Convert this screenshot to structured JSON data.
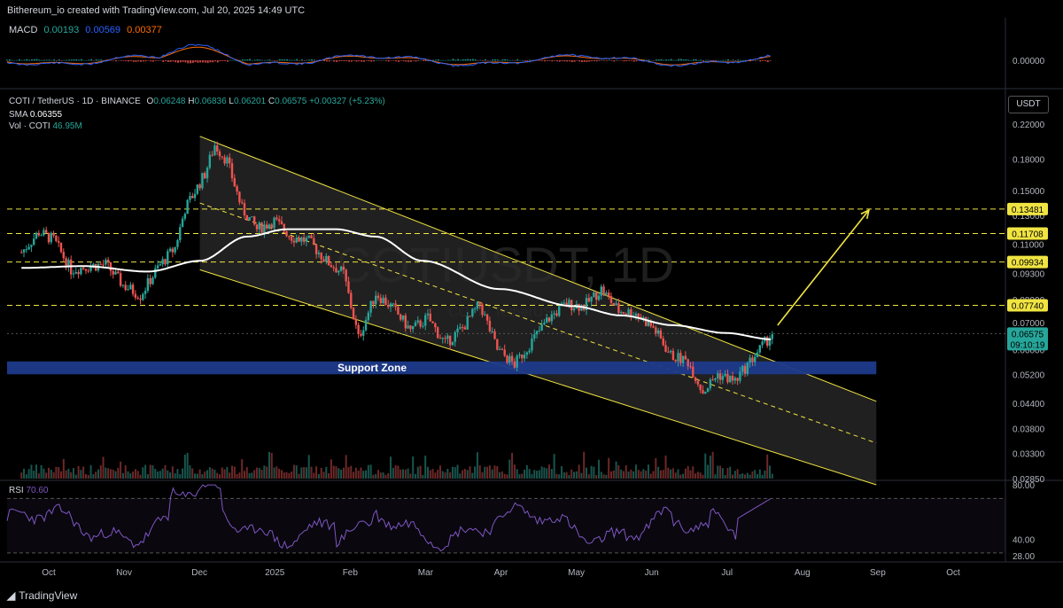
{
  "attribution": "Bithereum_io created with TradingView.com, Jul 20, 2025 14:49 UTC",
  "macd_header": {
    "label": "MACD",
    "v1": "0.00193",
    "v2": "0.00569",
    "v3": "0.00377",
    "axis_zero": "0.00000"
  },
  "main_header": {
    "symbol": "COTI / TetherUS · 1D · BINANCE",
    "ohlc": {
      "o_label": "O",
      "o": "0.06248",
      "h_label": "H",
      "h": "0.06836",
      "l_label": "L",
      "l": "0.06201",
      "c_label": "C",
      "c": "0.06575",
      "change": "+0.00327 (+5.23%)"
    },
    "sma_label": "SMA",
    "sma_value": "0.06355",
    "vol_label": "Vol · COTI",
    "vol_value": "46.95M"
  },
  "currency": "USDT",
  "watermark": "COTIUSDT, 1D",
  "watermark_sub": "COTI / TetherUS",
  "support_label": "Support Zone",
  "countdown": "09:10:19",
  "rsi_header": {
    "label": "RSI",
    "value": "70.60"
  },
  "branding": "TradingView",
  "colors": {
    "up": "#26a69a",
    "down": "#ef5350",
    "channel": "#f0e442",
    "sma": "#ffffff",
    "support": "#1e3a8a",
    "rsi": "#7e57c2",
    "macd_line": "#2962ff",
    "signal_line": "#ff6d00",
    "level": "#f0e442"
  },
  "chart_data": {
    "type": "candlestick",
    "symbol": "COTI/USDT",
    "timeframe": "1D",
    "y_scale": "log",
    "y_ticks": [
      "0.22000",
      "0.18000",
      "0.15000",
      "0.13000",
      "0.11000",
      "0.09300",
      "0.08000",
      "0.07000",
      "0.06000",
      "0.05200",
      "0.04400",
      "0.03800",
      "0.03300",
      "0.02850"
    ],
    "x_ticks": [
      "Oct",
      "Nov",
      "Dec",
      "2025",
      "Feb",
      "Mar",
      "Apr",
      "May",
      "Jun",
      "Jul",
      "Aug",
      "Sep",
      "Oct"
    ],
    "levels": [
      "0.13481",
      "0.11708",
      "0.09934",
      "0.07740"
    ],
    "last_price": "0.06575",
    "support_zone": {
      "low": 0.052,
      "high": 0.056,
      "label": "Support Zone"
    },
    "channel": {
      "upper": [
        [
          "Dec 1",
          0.205
        ],
        [
          "Jul 20",
          0.066
        ]
      ],
      "lower": [
        [
          "Dec 1",
          0.095
        ],
        [
          "Sep 1",
          0.0275
        ]
      ]
    },
    "projection_target": 0.134,
    "close_series": [
      [
        "Sep 20",
        0.105
      ],
      [
        "Sep 27",
        0.118
      ],
      [
        "Oct 3",
        0.113
      ],
      [
        "Oct 10",
        0.095
      ],
      [
        "Oct 17",
        0.097
      ],
      [
        "Oct 24",
        0.098
      ],
      [
        "Oct 31",
        0.087
      ],
      [
        "Nov 7",
        0.082
      ],
      [
        "Nov 14",
        0.096
      ],
      [
        "Nov 21",
        0.108
      ],
      [
        "Nov 25",
        0.135
      ],
      [
        "Dec 3",
        0.165
      ],
      [
        "Dec 7",
        0.195
      ],
      [
        "Dec 12",
        0.178
      ],
      [
        "Dec 18",
        0.135
      ],
      [
        "Dec 24",
        0.12
      ],
      [
        "Dec 31",
        0.126
      ],
      [
        "Jan 7",
        0.115
      ],
      [
        "Jan 14",
        0.112
      ],
      [
        "Jan 21",
        0.1
      ],
      [
        "Jan 28",
        0.093
      ],
      [
        "Feb 3",
        0.064
      ],
      [
        "Feb 10",
        0.083
      ],
      [
        "Feb 17",
        0.076
      ],
      [
        "Feb 24",
        0.067
      ],
      [
        "Mar 3",
        0.072
      ],
      [
        "Mar 10",
        0.062
      ],
      [
        "Mar 17",
        0.068
      ],
      [
        "Mar 24",
        0.078
      ],
      [
        "Mar 31",
        0.06
      ],
      [
        "Apr 7",
        0.055
      ],
      [
        "Apr 14",
        0.063
      ],
      [
        "Apr 21",
        0.072
      ],
      [
        "Apr 28",
        0.078
      ],
      [
        "May 5",
        0.077
      ],
      [
        "May 12",
        0.085
      ],
      [
        "May 19",
        0.075
      ],
      [
        "May 26",
        0.074
      ],
      [
        "Jun 2",
        0.068
      ],
      [
        "Jun 9",
        0.058
      ],
      [
        "Jun 16",
        0.056
      ],
      [
        "Jun 22",
        0.047
      ],
      [
        "Jun 28",
        0.052
      ],
      [
        "Jul 5",
        0.05
      ],
      [
        "Jul 12",
        0.057
      ],
      [
        "Jul 20",
        0.0657
      ]
    ],
    "sma_series": [
      [
        "Sep 20",
        0.096
      ],
      [
        "Oct 15",
        0.097
      ],
      [
        "Nov 10",
        0.094
      ],
      [
        "Dec 1",
        0.1
      ],
      [
        "Dec 20",
        0.115
      ],
      [
        "Jan 5",
        0.12
      ],
      [
        "Jan 25",
        0.12
      ],
      [
        "Feb 10",
        0.115
      ],
      [
        "Mar 1",
        0.1
      ],
      [
        "Apr 1",
        0.085
      ],
      [
        "May 1",
        0.077
      ],
      [
        "May 20",
        0.073
      ],
      [
        "Jun 10",
        0.069
      ],
      [
        "Jul 1",
        0.066
      ],
      [
        "Jul 20",
        0.0636
      ]
    ],
    "rsi": {
      "label": "RSI",
      "last": 70.6,
      "ticks": [
        "80.00",
        "40.00",
        "28.00"
      ]
    }
  }
}
